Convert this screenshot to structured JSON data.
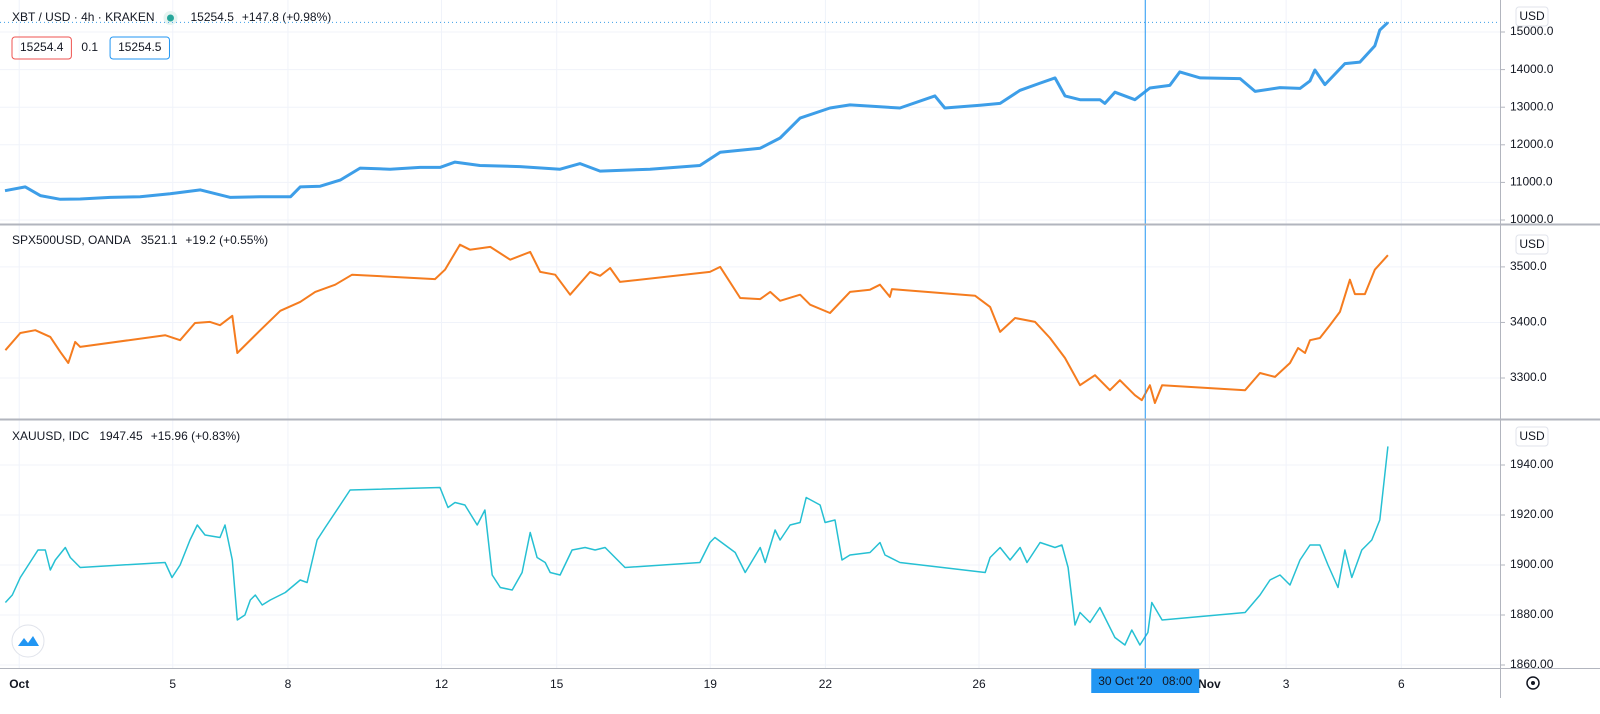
{
  "chart_data": [
    {
      "type": "line",
      "title": "XBT / USD · 4h · KRAKEN",
      "last": 15254.5,
      "change": "+147.8 (+0.98%)",
      "bid": 15254.4,
      "spread": 0.1,
      "ask": 15254.5,
      "currency": "USD",
      "color": "#3d9ee8",
      "x": [
        0.63,
        1.16,
        1.55,
        2.07,
        2.59,
        3.37,
        4.15,
        4.93,
        5.72,
        6.5,
        7.28,
        8.07,
        8.32,
        8.84,
        9.36,
        9.88,
        10.66,
        11.44,
        11.96,
        12.35,
        13.0,
        14.05,
        15.09,
        15.61,
        16.13,
        17.43,
        18.73,
        19.26,
        20.3,
        20.82,
        21.34,
        22.12,
        22.64,
        23.94,
        24.85,
        25.11,
        26.03,
        26.55,
        27.07,
        27.59,
        27.98,
        28.24,
        28.63,
        29.15,
        29.28,
        29.54,
        30.06,
        30.45,
        30.97,
        31.23,
        31.76,
        32.8,
        33.19,
        33.84,
        34.36,
        34.62,
        34.75,
        35.01,
        35.53,
        35.92,
        36.31,
        36.44,
        36.65
      ],
      "values": [
        10780,
        10880,
        10650,
        10550,
        10560,
        10600,
        10620,
        10700,
        10800,
        10600,
        10620,
        10620,
        10880,
        10900,
        11060,
        11380,
        11350,
        11400,
        11400,
        11540,
        11450,
        11420,
        11350,
        11500,
        11300,
        11350,
        11450,
        11800,
        11910,
        12180,
        12710,
        12980,
        13060,
        12980,
        13300,
        12980,
        13050,
        13100,
        13450,
        13640,
        13780,
        13300,
        13200,
        13200,
        13100,
        13400,
        13200,
        13510,
        13580,
        13940,
        13780,
        13760,
        13420,
        13520,
        13500,
        13700,
        13990,
        13600,
        14160,
        14200,
        14630,
        15050,
        15254.5
      ],
      "xlim": [
        0.5,
        39.57
      ],
      "ylim": [
        9947,
        15851
      ],
      "yticks": [
        {
          "value": 10000,
          "label": "10000.0"
        },
        {
          "value": 11000,
          "label": "11000.0"
        },
        {
          "value": 12000,
          "label": "12000.0"
        },
        {
          "value": 13000,
          "label": "13000.0"
        },
        {
          "value": 14000,
          "label": "14000.0"
        },
        {
          "value": 15000,
          "label": "15000.0"
        }
      ]
    },
    {
      "type": "line",
      "title": "SPX500USD, OANDA",
      "last": 3521.1,
      "change": "+19.2 (+0.55%)",
      "currency": "USD",
      "color": "#f57c1f",
      "x": [
        0.64,
        1.03,
        1.42,
        1.81,
        2.07,
        2.28,
        2.46,
        2.59,
        4.8,
        5.19,
        5.58,
        5.97,
        6.23,
        6.55,
        6.68,
        7.28,
        7.8,
        8.32,
        8.71,
        9.23,
        9.67,
        11.83,
        12.09,
        12.48,
        12.74,
        13.27,
        13.79,
        14.31,
        14.57,
        14.96,
        15.35,
        15.87,
        16.13,
        16.39,
        16.65,
        18.99,
        19.26,
        19.78,
        20.3,
        20.56,
        20.82,
        21.34,
        21.6,
        22.12,
        22.64,
        23.16,
        23.42,
        23.68,
        23.73,
        25.9,
        26.29,
        26.55,
        26.94,
        27.46,
        27.85,
        28.24,
        28.63,
        29.02,
        29.41,
        29.67,
        30.06,
        30.24,
        30.45,
        30.58,
        30.77,
        32.93,
        33.32,
        33.71,
        34.1,
        34.31,
        34.49,
        34.62,
        34.88,
        35.14,
        35.4,
        35.66,
        35.79,
        36.05,
        36.31,
        36.65
      ],
      "values": [
        3350,
        3381,
        3386,
        3374,
        3347,
        3327,
        3365,
        3356,
        3377,
        3368,
        3399,
        3401,
        3395,
        3412,
        3345,
        3386,
        3421,
        3437,
        3455,
        3468,
        3486,
        3478,
        3495,
        3540,
        3531,
        3536,
        3513,
        3527,
        3491,
        3486,
        3450,
        3491,
        3484,
        3498,
        3473,
        3491,
        3500,
        3444,
        3442,
        3455,
        3439,
        3450,
        3432,
        3417,
        3455,
        3459,
        3468,
        3446,
        3460,
        3448,
        3428,
        3383,
        3408,
        3401,
        3372,
        3336,
        3287,
        3305,
        3278,
        3296,
        3269,
        3260,
        3287,
        3255,
        3287,
        3278,
        3309,
        3302,
        3327,
        3354,
        3345,
        3368,
        3372,
        3395,
        3419,
        3477,
        3451,
        3451,
        3495,
        3521.1
      ],
      "xlim": [
        0.5,
        39.57
      ],
      "ylim": [
        3228,
        3570
      ],
      "yticks": [
        {
          "value": 3300,
          "label": "3300.0"
        },
        {
          "value": 3400,
          "label": "3400.0"
        },
        {
          "value": 3500,
          "label": "3500.0"
        }
      ]
    },
    {
      "type": "line",
      "title": "XAUUSD, IDC",
      "last": 1947.45,
      "change": "+15.96 (+0.83%)",
      "currency": "USD",
      "color": "#26c0d3",
      "x": [
        0.64,
        0.82,
        1.03,
        1.49,
        1.68,
        1.81,
        1.94,
        2.2,
        2.33,
        2.59,
        4.8,
        4.98,
        5.19,
        5.45,
        5.64,
        5.84,
        6.23,
        6.36,
        6.55,
        6.68,
        6.88,
        7.02,
        7.15,
        7.33,
        7.54,
        7.93,
        8.32,
        8.5,
        8.76,
        8.97,
        9.36,
        9.62,
        11.96,
        12.17,
        12.35,
        12.61,
        12.93,
        13.13,
        13.32,
        13.53,
        13.84,
        14.1,
        14.31,
        14.49,
        14.7,
        14.83,
        15.09,
        15.4,
        15.74,
        16.0,
        16.26,
        16.78,
        18.73,
        18.99,
        19.12,
        19.65,
        19.91,
        20.3,
        20.43,
        20.69,
        20.82,
        21.08,
        21.34,
        21.5,
        21.86,
        21.99,
        22.25,
        22.43,
        22.64,
        23.16,
        23.42,
        23.55,
        23.94,
        26.16,
        26.29,
        26.55,
        26.81,
        27.07,
        27.25,
        27.59,
        27.98,
        28.16,
        28.32,
        28.5,
        28.63,
        28.89,
        29.15,
        29.54,
        29.8,
        29.98,
        30.19,
        30.4,
        30.5,
        30.77,
        32.93,
        33.32,
        33.58,
        33.84,
        34.1,
        34.36,
        34.62,
        34.88,
        35.09,
        35.35,
        35.53,
        35.71,
        35.97,
        36.23,
        36.44,
        36.65
      ],
      "values": [
        1885,
        1888,
        1895,
        1906,
        1906,
        1898,
        1902,
        1907,
        1903,
        1899,
        1901,
        1895,
        1900,
        1910,
        1916,
        1912,
        1911,
        1916,
        1902,
        1878,
        1880,
        1886,
        1888,
        1884,
        1886,
        1889,
        1894,
        1893,
        1910,
        1915,
        1924,
        1930,
        1931,
        1923,
        1925,
        1924,
        1916,
        1922,
        1896,
        1891,
        1890,
        1897,
        1913,
        1903,
        1901,
        1897,
        1896,
        1906,
        1907,
        1906,
        1907,
        1899,
        1901,
        1909,
        1911,
        1905,
        1897,
        1907,
        1901,
        1914,
        1910,
        1916,
        1917,
        1927,
        1924,
        1917,
        1918,
        1902,
        1904,
        1905,
        1909,
        1904,
        1901,
        1897,
        1903,
        1907,
        1902,
        1907,
        1901,
        1909,
        1907,
        1908,
        1899,
        1876,
        1881,
        1877,
        1883,
        1871,
        1868,
        1874,
        1868,
        1873,
        1885,
        1878,
        1881,
        1888,
        1894,
        1896,
        1892,
        1902,
        1908,
        1908,
        1900,
        1891,
        1906,
        1895,
        1906,
        1910,
        1918,
        1947.45
      ],
      "xlim": [
        0.5,
        39.57
      ],
      "ylim": [
        1858.8,
        1958
      ],
      "yticks": [
        {
          "value": 1860,
          "label": "1860.00"
        },
        {
          "value": 1880,
          "label": "1880.00"
        },
        {
          "value": 1900,
          "label": "1900.00"
        },
        {
          "value": 1920,
          "label": "1920.00"
        },
        {
          "value": 1940,
          "label": "1940.00"
        }
      ],
      "xticks": [
        {
          "value": 1,
          "label": "Oct"
        },
        5,
        8,
        12,
        15,
        19,
        22,
        26,
        {
          "value": 32,
          "label": "Nov"
        },
        {
          "value": 34,
          "label": "3"
        },
        {
          "value": 37,
          "label": "6"
        }
      ],
      "crosshair": {
        "x": 30.33,
        "date": "30 Oct '20",
        "time": "08:00"
      }
    }
  ]
}
